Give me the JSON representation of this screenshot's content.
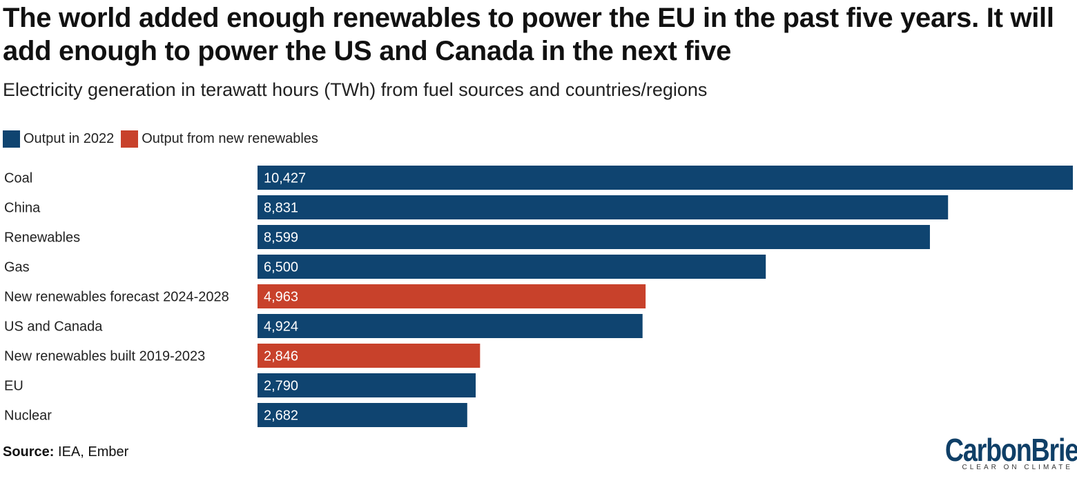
{
  "header": {
    "title": "The world added enough renewables to power the EU in the past five years. It will add enough to power the US and Canada in the next five",
    "subtitle": "Electricity generation in terawatt hours (TWh) from fuel sources and countries/regions"
  },
  "legend": [
    {
      "label": "Output in 2022",
      "color": "#0f4470"
    },
    {
      "label": "Output from new renewables",
      "color": "#c8412b"
    }
  ],
  "chart_data": {
    "type": "bar",
    "orientation": "horizontal",
    "title": "The world added enough renewables to power the EU in the past five years. It will add enough to power the US and Canada in the next five",
    "subtitle": "Electricity generation in terawatt hours (TWh) from fuel sources and countries/regions",
    "categories": [
      "Coal",
      "China",
      "Renewables",
      "Gas",
      "New renewables forecast 2024-2028",
      "US and Canada",
      "New renewables built 2019-2023",
      "EU",
      "Nuclear"
    ],
    "values": [
      10427,
      8831,
      8599,
      6500,
      4963,
      4924,
      2846,
      2790,
      2682
    ],
    "value_labels": [
      "10,427",
      "8,831",
      "8,599",
      "6,500",
      "4,963",
      "4,924",
      "2,846",
      "2,790",
      "2,682"
    ],
    "groups": [
      "Output in 2022",
      "Output in 2022",
      "Output in 2022",
      "Output in 2022",
      "Output from new renewables",
      "Output in 2022",
      "Output from new renewables",
      "Output in 2022",
      "Output in 2022"
    ],
    "xlim": [
      0,
      10427
    ],
    "grid": false,
    "legend_position": "top-left"
  },
  "footer": {
    "source_label": "Source:",
    "source_text": "IEA, Ember",
    "logo_text": "CarbonBrief",
    "logo_tagline": "CLEAR ON CLIMATE"
  }
}
